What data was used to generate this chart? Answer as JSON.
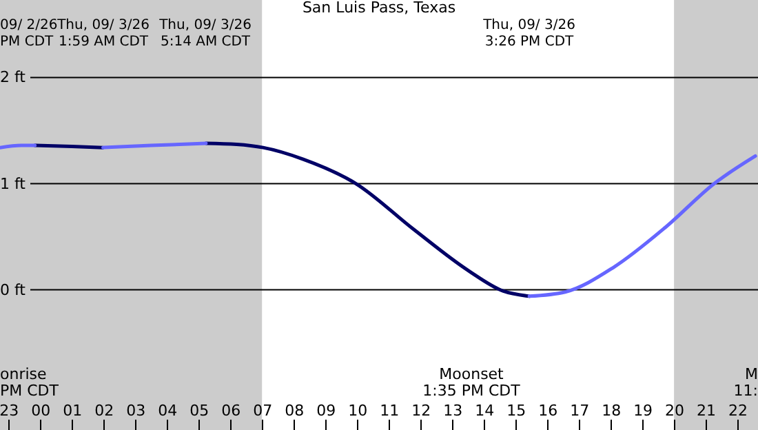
{
  "chart_data": {
    "type": "line",
    "title": "San Luis Pass, Texas",
    "x": [
      "--09-02T22:44",
      "--09-02T23:24",
      "--09-02T23:50",
      "--09-03T01:00",
      "--09-03T01:59",
      "--09-03T03:30",
      "--09-03T05:14",
      "--09-03T06:12",
      "--09-03T07:02",
      "--09-03T08:18",
      "--09-03T09:58",
      "--09-03T11:47",
      "--09-03T13:31",
      "--09-03T14:36",
      "--09-03T15:26",
      "--09-03T16:34",
      "--09-03T18:05",
      "--09-03T19:44",
      "--09-03T21:16",
      "--09-03T22:34"
    ],
    "series": [
      {
        "color": "#000066",
        "values": [
          null,
          null,
          1.36,
          1.35,
          1.34,
          null,
          1.38,
          1.37,
          1.34,
          1.23,
          1.0,
          0.57,
          0.18,
          -0.01,
          -0.06,
          null,
          null,
          null,
          null,
          null
        ]
      },
      {
        "color": "#6666ff",
        "values": [
          1.34,
          1.36,
          1.36,
          null,
          1.34,
          1.36,
          1.38,
          null,
          null,
          null,
          null,
          null,
          null,
          null,
          -0.06,
          -0.02,
          0.21,
          0.59,
          1.0,
          1.26
        ]
      }
    ],
    "xlim": [
      "--09-02T22:44",
      "--09-03T22:39"
    ],
    "ylim": [
      -1.32,
      2.73
    ],
    "xticks": [
      {
        "value": "--09-02T23:00",
        "label": "23"
      },
      {
        "value": "--09-03T00:00",
        "label": "00"
      },
      {
        "value": "--09-03T01:00",
        "label": "01"
      },
      {
        "value": "--09-03T02:00",
        "label": "02"
      },
      {
        "value": "--09-03T03:00",
        "label": "03"
      },
      {
        "value": "--09-03T04:00",
        "label": "04"
      },
      {
        "value": "--09-03T05:00",
        "label": "05"
      },
      {
        "value": "--09-03T06:00",
        "label": "06"
      },
      {
        "value": "--09-03T07:00",
        "label": "07"
      },
      {
        "value": "--09-03T08:00",
        "label": "08"
      },
      {
        "value": "--09-03T09:00",
        "label": "09"
      },
      {
        "value": "--09-03T10:00",
        "label": "10"
      },
      {
        "value": "--09-03T11:00",
        "label": "11"
      },
      {
        "value": "--09-03T12:00",
        "label": "12"
      },
      {
        "value": "--09-03T13:00",
        "label": "13"
      },
      {
        "value": "--09-03T14:00",
        "label": "14"
      },
      {
        "value": "--09-03T15:00",
        "label": "15"
      },
      {
        "value": "--09-03T16:00",
        "label": "16"
      },
      {
        "value": "--09-03T17:00",
        "label": "17"
      },
      {
        "value": "--09-03T18:00",
        "label": "18"
      },
      {
        "value": "--09-03T19:00",
        "label": "19"
      },
      {
        "value": "--09-03T20:00",
        "label": "20"
      },
      {
        "value": "--09-03T21:00",
        "label": "21"
      },
      {
        "value": "--09-03T22:00",
        "label": "22"
      }
    ],
    "yticks": [
      {
        "value": 0,
        "label": "0 ft"
      },
      {
        "value": 1,
        "label": "1 ft"
      },
      {
        "value": 2,
        "label": "2 ft"
      }
    ],
    "grid": "y",
    "bands": [
      {
        "axis": "x",
        "from": "--09-02T22:44",
        "to": "--09-03T07:00",
        "color": "#cccccc"
      },
      {
        "axis": "x",
        "from": "--09-03T20:00",
        "to": "--09-03T22:39",
        "color": "#cccccc"
      }
    ],
    "annotations": [
      "09/ 2/26\nPM CDT",
      "Thu, 09/ 3/26\n1:59 AM CDT",
      "Thu, 09/ 3/26\n5:14 AM CDT",
      "Thu, 09/ 3/26\n3:26 PM CDT",
      "onrise\nPM CDT",
      "Moonset\n1:35 PM CDT",
      "M\n11:"
    ]
  }
}
